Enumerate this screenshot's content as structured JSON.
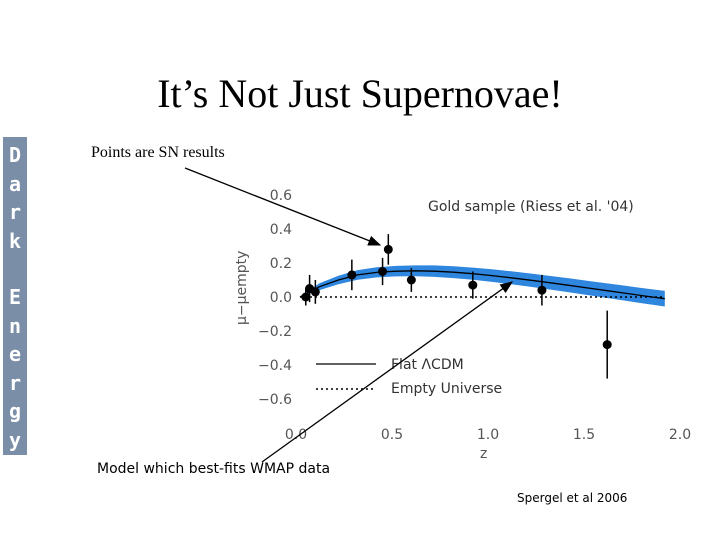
{
  "slide": {
    "title": "It’s Not Just Supernovae!",
    "sidebar_words": [
      "Dark",
      "Energy"
    ],
    "note_points": "Points are SN results",
    "note_model": "Model which best-fits WMAP data",
    "credit": "Spergel et al 2006"
  },
  "chart_data": {
    "type": "scatter",
    "annotation": "Gold sample (Riess et al. '04)",
    "xlabel": "z",
    "ylabel": "μ−μempty",
    "xlim": [
      0.0,
      2.0
    ],
    "ylim": [
      -0.7,
      0.7
    ],
    "xticks": [
      "0.0",
      "0.5",
      "1.0",
      "1.5",
      "2.0"
    ],
    "yticks": [
      "0.6",
      "0.4",
      "0.2",
      "0.0",
      "−0.2",
      "−0.4",
      "−0.6"
    ],
    "points": [
      {
        "x": 0.03,
        "y": 0.0,
        "err": 0.05
      },
      {
        "x": 0.05,
        "y": 0.05,
        "err": 0.08
      },
      {
        "x": 0.08,
        "y": 0.03,
        "err": 0.07
      },
      {
        "x": 0.27,
        "y": 0.13,
        "err": 0.09
      },
      {
        "x": 0.43,
        "y": 0.15,
        "err": 0.08
      },
      {
        "x": 0.46,
        "y": 0.28,
        "err": 0.09
      },
      {
        "x": 0.58,
        "y": 0.1,
        "err": 0.07
      },
      {
        "x": 0.9,
        "y": 0.07,
        "err": 0.08
      },
      {
        "x": 1.26,
        "y": 0.04,
        "err": 0.09
      },
      {
        "x": 1.6,
        "y": -0.28,
        "err": 0.2
      }
    ],
    "model_curve": {
      "name": "Flat ΛCDM",
      "x": [
        0.0,
        0.1,
        0.2,
        0.3,
        0.4,
        0.5,
        0.6,
        0.7,
        0.8,
        0.9,
        1.0,
        1.1,
        1.2,
        1.3,
        1.4,
        1.5,
        1.6,
        1.7,
        1.8,
        1.9
      ],
      "y": [
        0.0,
        0.06,
        0.1,
        0.13,
        0.145,
        0.152,
        0.154,
        0.152,
        0.146,
        0.137,
        0.126,
        0.113,
        0.099,
        0.084,
        0.069,
        0.053,
        0.037,
        0.021,
        0.005,
        -0.01
      ],
      "band": [
        0.0,
        0.02,
        0.025,
        0.028,
        0.03,
        0.031,
        0.032,
        0.034,
        0.035,
        0.036,
        0.037,
        0.038,
        0.039,
        0.04,
        0.041,
        0.042,
        0.043,
        0.044,
        0.045,
        0.046
      ]
    },
    "empty_universe": {
      "name": "Empty Universe",
      "y": 0.0
    },
    "band_color": "#2f86de",
    "grid": false
  }
}
